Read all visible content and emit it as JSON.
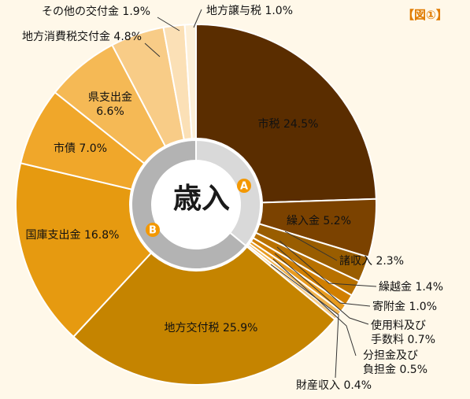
{
  "figure_label": "【図①】",
  "center_label": "歳入",
  "groups": [
    {
      "badge": "A",
      "color": "#f39800",
      "inner_color": "#d9d9d9"
    },
    {
      "badge": "B",
      "color": "#f39800",
      "inner_color": "#b3b3b3"
    }
  ],
  "chart_data": {
    "type": "pie",
    "title": "",
    "slices": [
      {
        "name": "市税",
        "value": 24.5,
        "text": "市税 24.5%",
        "color": "#5a2d00",
        "group": "A"
      },
      {
        "name": "繰入金",
        "value": 5.2,
        "text": "繰入金 5.2%",
        "color": "#7b4200",
        "group": "A"
      },
      {
        "name": "諸収入",
        "value": 2.3,
        "text": "諸収入 2.3%",
        "color": "#995d00",
        "group": "A"
      },
      {
        "name": "繰越金",
        "value": 1.4,
        "text": "繰越金 1.4%",
        "color": "#b87100",
        "group": "A"
      },
      {
        "name": "寄附金",
        "value": 1.0,
        "text": "寄附金 1.0%",
        "color": "#d17f00",
        "group": "A"
      },
      {
        "name": "使用料及び手数料",
        "value": 0.7,
        "text": [
          "使用料及び",
          "手数料 0.7%"
        ],
        "color": "#e89b1f",
        "group": "A"
      },
      {
        "name": "分担金及び負担金",
        "value": 0.5,
        "text": [
          "分担金及び",
          "負担金 0.5%"
        ],
        "color": "#f1b552",
        "group": "A"
      },
      {
        "name": "財産収入",
        "value": 0.4,
        "text": "財産収入 0.4%",
        "color": "#f6cf8e",
        "group": "A"
      },
      {
        "name": "地方交付税",
        "value": 25.9,
        "text": "地方交付税 25.9%",
        "color": "#c58400",
        "group": "B"
      },
      {
        "name": "国庫支出金",
        "value": 16.8,
        "text": "国庫支出金 16.8%",
        "color": "#e69a10",
        "group": "B"
      },
      {
        "name": "市債",
        "value": 7.0,
        "text": "市債 7.0%",
        "color": "#f0a72a",
        "group": "B"
      },
      {
        "name": "県支出金",
        "value": 6.6,
        "text": [
          "県支出金",
          "6.6%"
        ],
        "color": "#f5b955",
        "group": "B"
      },
      {
        "name": "地方消費税交付金",
        "value": 4.8,
        "text": "地方消費税交付金 4.8%",
        "color": "#f8cc87",
        "group": "B"
      },
      {
        "name": "その他の交付金",
        "value": 1.9,
        "text": "その他の交付金 1.9%",
        "color": "#fbe0b6",
        "group": "B"
      },
      {
        "name": "地方譲与税",
        "value": 1.0,
        "text": "地方譲与税 1.0%",
        "color": "#fdf0d9",
        "group": "B"
      }
    ]
  }
}
